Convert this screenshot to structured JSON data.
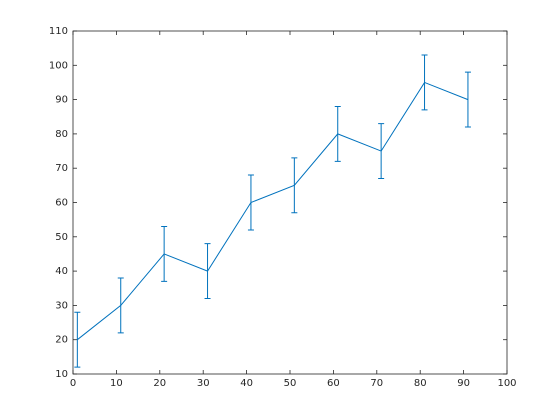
{
  "chart_data": {
    "type": "errorbar",
    "x": [
      1,
      11,
      21,
      31,
      41,
      51,
      61,
      71,
      81,
      91
    ],
    "series": [
      {
        "color": "#0072bd",
        "values": [
          20,
          30,
          45,
          40,
          60,
          65,
          80,
          75,
          95,
          90
        ],
        "errors": [
          8,
          8,
          8,
          8,
          8,
          8,
          8,
          8,
          8,
          8
        ]
      }
    ],
    "xlim": [
      0,
      100
    ],
    "xticks": [
      0,
      10,
      20,
      30,
      40,
      50,
      60,
      70,
      80,
      90,
      100
    ],
    "ylim": [
      10,
      110
    ],
    "yticks": [
      10,
      20,
      30,
      40,
      50,
      60,
      70,
      80,
      90,
      100,
      110
    ],
    "grid": false
  }
}
